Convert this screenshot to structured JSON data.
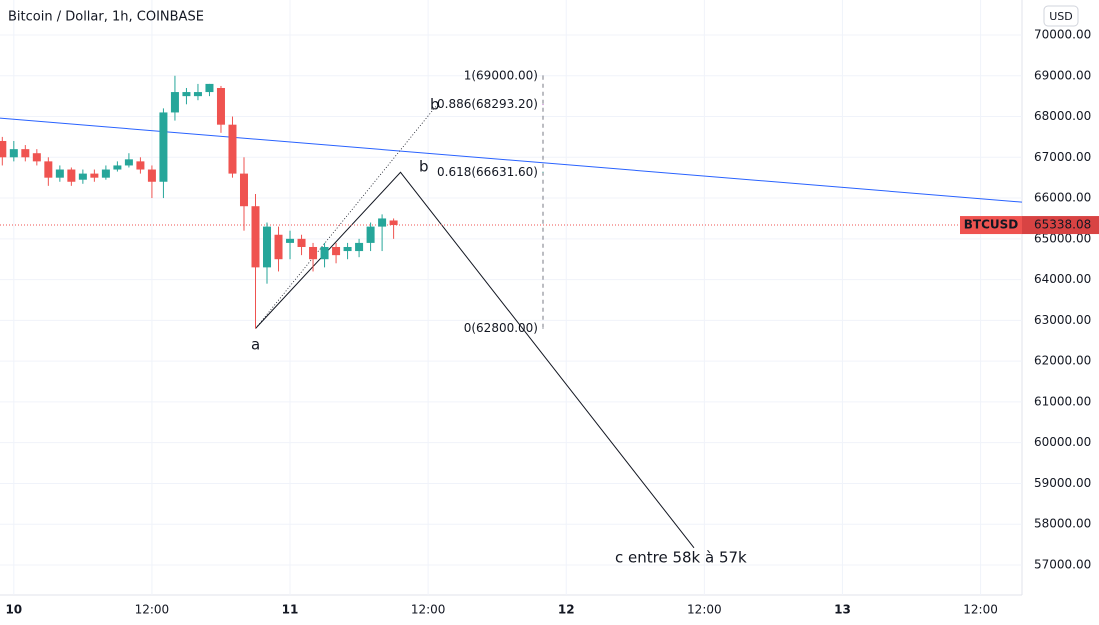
{
  "chart_data": {
    "type": "candlestick",
    "title": "Bitcoin / Dollar, 1h, COINBASE",
    "currency": "USD",
    "xlim": [
      -1.2,
      87.6
    ],
    "ylim": [
      56264,
      70858
    ],
    "xticks": [
      {
        "value": 0,
        "label": "10"
      },
      {
        "value": 12,
        "label": "12:00"
      },
      {
        "value": 24,
        "label": "11"
      },
      {
        "value": 36,
        "label": "12:00"
      },
      {
        "value": 48,
        "label": "12"
      },
      {
        "value": 60,
        "label": "12:00"
      },
      {
        "value": 72,
        "label": "13"
      },
      {
        "value": 84,
        "label": "12:00"
      }
    ],
    "yticks": [
      {
        "value": 57000,
        "label": "57000.00"
      },
      {
        "value": 58000,
        "label": "58000.00"
      },
      {
        "value": 59000,
        "label": "59000.00"
      },
      {
        "value": 60000,
        "label": "60000.00"
      },
      {
        "value": 61000,
        "label": "61000.00"
      },
      {
        "value": 62000,
        "label": "62000.00"
      },
      {
        "value": 63000,
        "label": "63000.00"
      },
      {
        "value": 64000,
        "label": "64000.00"
      },
      {
        "value": 65000,
        "label": "65000.00"
      },
      {
        "value": 66000,
        "label": "66000.00"
      },
      {
        "value": 67000,
        "label": "67000.00"
      },
      {
        "value": 68000,
        "label": "68000.00"
      },
      {
        "value": 69000,
        "label": "69000.00"
      },
      {
        "value": 70000,
        "label": "70000.00"
      }
    ],
    "grid": true,
    "up_color": "#26a69a",
    "down_color": "#ef5350",
    "candles": [
      {
        "x": -1,
        "open": 67400,
        "high": 67500,
        "low": 66800,
        "close": 67000
      },
      {
        "x": 0,
        "open": 67000,
        "high": 67400,
        "low": 66900,
        "close": 67200
      },
      {
        "x": 1,
        "open": 67200,
        "high": 67300,
        "low": 66900,
        "close": 67000
      },
      {
        "x": 2,
        "open": 67100,
        "high": 67200,
        "low": 66800,
        "close": 66900
      },
      {
        "x": 3,
        "open": 66900,
        "high": 67000,
        "low": 66300,
        "close": 66500
      },
      {
        "x": 4,
        "open": 66500,
        "high": 66800,
        "low": 66400,
        "close": 66700
      },
      {
        "x": 5,
        "open": 66700,
        "high": 66750,
        "low": 66300,
        "close": 66400
      },
      {
        "x": 6,
        "open": 66450,
        "high": 66700,
        "low": 66350,
        "close": 66600
      },
      {
        "x": 7,
        "open": 66600,
        "high": 66700,
        "low": 66400,
        "close": 66500
      },
      {
        "x": 8,
        "open": 66500,
        "high": 66800,
        "low": 66450,
        "close": 66700
      },
      {
        "x": 9,
        "open": 66700,
        "high": 66900,
        "low": 66650,
        "close": 66800
      },
      {
        "x": 10,
        "open": 66800,
        "high": 67100,
        "low": 66750,
        "close": 66950
      },
      {
        "x": 11,
        "open": 66900,
        "high": 67000,
        "low": 66600,
        "close": 66700
      },
      {
        "x": 12,
        "open": 66700,
        "high": 66800,
        "low": 66000,
        "close": 66400
      },
      {
        "x": 13,
        "open": 66400,
        "high": 68200,
        "low": 66000,
        "close": 68100
      },
      {
        "x": 14,
        "open": 68100,
        "high": 69000,
        "low": 67900,
        "close": 68600
      },
      {
        "x": 15,
        "open": 68500,
        "high": 68700,
        "low": 68300,
        "close": 68600
      },
      {
        "x": 16,
        "open": 68500,
        "high": 68800,
        "low": 68400,
        "close": 68600
      },
      {
        "x": 17,
        "open": 68600,
        "high": 68800,
        "low": 68500,
        "close": 68800
      },
      {
        "x": 18,
        "open": 68700,
        "high": 68750,
        "low": 67600,
        "close": 67800
      },
      {
        "x": 19,
        "open": 67800,
        "high": 68000,
        "low": 66500,
        "close": 66600
      },
      {
        "x": 20,
        "open": 66600,
        "high": 67000,
        "low": 65200,
        "close": 65800
      },
      {
        "x": 21,
        "open": 65800,
        "high": 66100,
        "low": 62800,
        "close": 64300
      },
      {
        "x": 22,
        "open": 64300,
        "high": 65400,
        "low": 63900,
        "close": 65300
      },
      {
        "x": 23,
        "open": 65100,
        "high": 65300,
        "low": 64200,
        "close": 64500
      },
      {
        "x": 24,
        "open": 64900,
        "high": 65200,
        "low": 64500,
        "close": 65000
      },
      {
        "x": 25,
        "open": 65000,
        "high": 65100,
        "low": 64600,
        "close": 64800
      },
      {
        "x": 26,
        "open": 64800,
        "high": 64900,
        "low": 64200,
        "close": 64500
      },
      {
        "x": 27,
        "open": 64500,
        "high": 64900,
        "low": 64300,
        "close": 64800
      },
      {
        "x": 28,
        "open": 64800,
        "high": 64900,
        "low": 64400,
        "close": 64600
      },
      {
        "x": 29,
        "open": 64700,
        "high": 64900,
        "low": 64500,
        "close": 64800
      },
      {
        "x": 30,
        "open": 64700,
        "high": 65000,
        "low": 64550,
        "close": 64900
      },
      {
        "x": 31,
        "open": 64900,
        "high": 65400,
        "low": 64700,
        "close": 65300
      },
      {
        "x": 32,
        "open": 65300,
        "high": 65600,
        "low": 64700,
        "close": 65500
      },
      {
        "x": 33,
        "open": 65450,
        "high": 65500,
        "low": 65000,
        "close": 65338.08
      }
    ],
    "last_price": {
      "name": "BTCUSD",
      "value": 65338.08,
      "label": "65338.08"
    },
    "trendline": {
      "color": "#2962ff",
      "x": [
        -1.2,
        87.6
      ],
      "values": [
        67960,
        65900
      ]
    },
    "wave_path": {
      "color": "#131722",
      "x": [
        21,
        33.6,
        59.1
      ],
      "values": [
        62800,
        66631.6,
        57420
      ]
    },
    "dotted_path": {
      "color": "#131722",
      "x": [
        21,
        36.8
      ],
      "values": [
        62800,
        68293.2
      ]
    },
    "fib_levels": [
      {
        "label": "1(69000.00)",
        "value": 69000,
        "color": "#787b86"
      },
      {
        "label": "0.886(68293.20)",
        "value": 68293.2,
        "color": "#9c27b0"
      },
      {
        "label": "0.618(66631.60)",
        "value": 66631.6,
        "color": "#089981"
      },
      {
        "label": "0(62800.00)",
        "value": 62800,
        "color": "#787b86"
      }
    ],
    "annotations": [
      "a",
      "b",
      "b",
      "c entre 58k à 57k"
    ]
  }
}
